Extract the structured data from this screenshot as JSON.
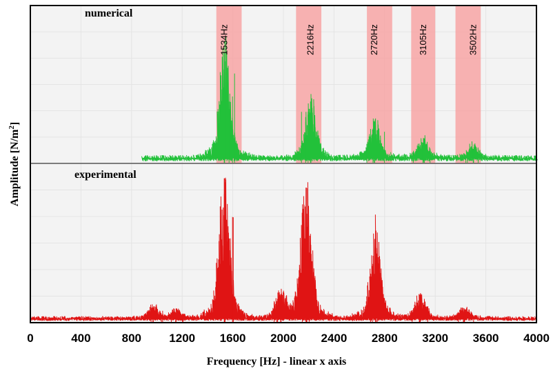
{
  "chart_data": {
    "type": "line",
    "title": "",
    "xlabel": "Frequency [Hz] - linear x axis",
    "ylabel": "Amplitude [N/m²]",
    "ylabel_parts": {
      "main": "Amplitude [N/m",
      "sup": "2",
      "end": "]"
    },
    "xlim": [
      0,
      4000
    ],
    "xticks": [
      0,
      400,
      800,
      1200,
      1600,
      2000,
      2400,
      2800,
      3200,
      3600,
      4000
    ],
    "grid": true,
    "panels": [
      {
        "name": "numerical",
        "color": "#22c13a",
        "ylim": [
          0,
          1
        ],
        "baseline": 0.02,
        "highlight_bands": [
          {
            "label": "1534Hz",
            "center": 1534,
            "range": [
              1470,
              1670
            ]
          },
          {
            "label": "2216Hz",
            "center": 2216,
            "range": [
              2100,
              2300
            ]
          },
          {
            "label": "2720Hz",
            "center": 2720,
            "range": [
              2660,
              2860
            ]
          },
          {
            "label": "3105Hz",
            "center": 3105,
            "range": [
              3010,
              3200
            ]
          },
          {
            "label": "3502Hz",
            "center": 3502,
            "range": [
              3360,
              3560
            ]
          }
        ],
        "x_start": 880,
        "peaks": [
          {
            "x": 1534,
            "height": 0.72
          },
          {
            "x": 2216,
            "height": 0.4
          },
          {
            "x": 2720,
            "height": 0.27
          },
          {
            "x": 3105,
            "height": 0.13
          },
          {
            "x": 3502,
            "height": 0.09
          }
        ]
      },
      {
        "name": "experimental",
        "color": "#e01414",
        "ylim": [
          0,
          1
        ],
        "baseline": 0.015,
        "x_start": 0,
        "peaks": [
          {
            "x": 970,
            "height": 0.09
          },
          {
            "x": 1150,
            "height": 0.06
          },
          {
            "x": 1534,
            "height": 0.93
          },
          {
            "x": 1980,
            "height": 0.18
          },
          {
            "x": 2180,
            "height": 0.87
          },
          {
            "x": 2730,
            "height": 0.59
          },
          {
            "x": 3080,
            "height": 0.16
          },
          {
            "x": 3430,
            "height": 0.08
          }
        ]
      }
    ]
  },
  "colors": {
    "band": "#f7a5a5",
    "frame": "#000000",
    "grid": "#e4e4e4",
    "panel_bg": "#f3f3f3"
  }
}
